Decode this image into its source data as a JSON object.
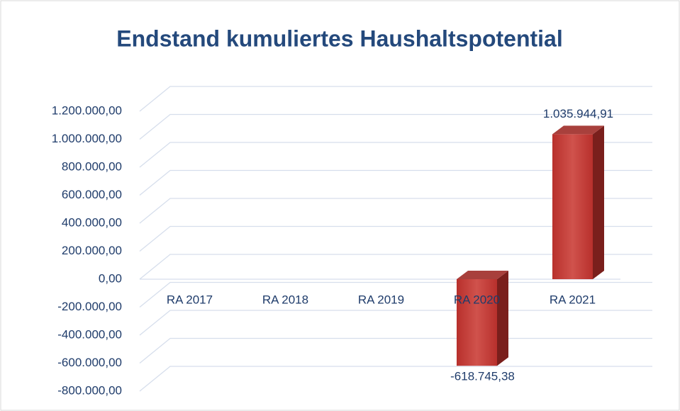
{
  "chart_data": {
    "type": "bar3d",
    "title": "Endstand kumuliertes Haushaltspotential",
    "categories": [
      "RA 2017",
      "RA 2018",
      "RA 2019",
      "RA 2020",
      "RA 2021"
    ],
    "values": [
      null,
      null,
      null,
      -618745.38,
      1035944.91
    ],
    "value_labels": [
      null,
      null,
      null,
      "-618.745,38",
      "1.035.944,91"
    ],
    "color": "#c0403b",
    "ylim": [
      -800000,
      1200000
    ],
    "yticks": [
      {
        "value": -800000,
        "label": "-800.000,00"
      },
      {
        "value": -600000,
        "label": "-600.000,00"
      },
      {
        "value": -400000,
        "label": "-400.000,00"
      },
      {
        "value": -200000,
        "label": "-200.000,00"
      },
      {
        "value": 0,
        "label": "0,00"
      },
      {
        "value": 200000,
        "label": "200.000,00"
      },
      {
        "value": 400000,
        "label": "400.000,00"
      },
      {
        "value": 600000,
        "label": "600.000,00"
      },
      {
        "value": 800000,
        "label": "800.000,00"
      },
      {
        "value": 1000000,
        "label": "1.000.000,00"
      },
      {
        "value": 1200000,
        "label": "1.200.000,00"
      }
    ],
    "grid": true
  }
}
